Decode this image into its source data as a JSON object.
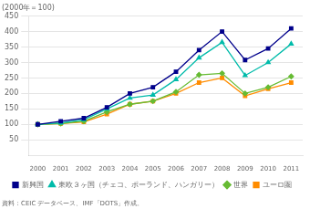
{
  "chart_data": {
    "type": "line",
    "ylabel": "(2000年＝100)",
    "annotations": [
      "資料：CEIC データベース、IMF「DOTS」作成。"
    ],
    "x": [
      2000,
      2001,
      2002,
      2003,
      2004,
      2005,
      2006,
      2007,
      2008,
      2009,
      2010,
      2011
    ],
    "series": [
      {
        "name": "新興国",
        "color": "#00008B",
        "marker": "square",
        "values": [
          100,
          110,
          120,
          155,
          200,
          220,
          270,
          340,
          400,
          308,
          345,
          410
        ]
      },
      {
        "name": "東欧３ヶ国（チェコ、ポーランド、ハンガリー）",
        "color": "#00BBAA",
        "marker": "triangle",
        "values": [
          100,
          105,
          115,
          150,
          185,
          195,
          245,
          315,
          365,
          258,
          300,
          360
        ]
      },
      {
        "name": "世界",
        "color": "#66BB33",
        "marker": "diamond",
        "values": [
          100,
          103,
          110,
          140,
          165,
          175,
          205,
          260,
          265,
          200,
          220,
          255
        ]
      },
      {
        "name": "ユーロ圏",
        "color": "#FF8C00",
        "marker": "square",
        "values": [
          100,
          103,
          108,
          133,
          165,
          175,
          200,
          235,
          250,
          192,
          215,
          235
        ]
      }
    ],
    "xlim": [
      1999.6,
      2011.5
    ],
    "xticks": [
      2000,
      2001,
      2002,
      2003,
      2004,
      2005,
      2006,
      2007,
      2008,
      2009,
      2010,
      2011
    ],
    "ylim": [
      0,
      450
    ],
    "yticks": [
      50,
      100,
      150,
      200,
      250,
      300,
      350,
      400,
      450
    ],
    "grid": "y",
    "legend": "bottom"
  }
}
